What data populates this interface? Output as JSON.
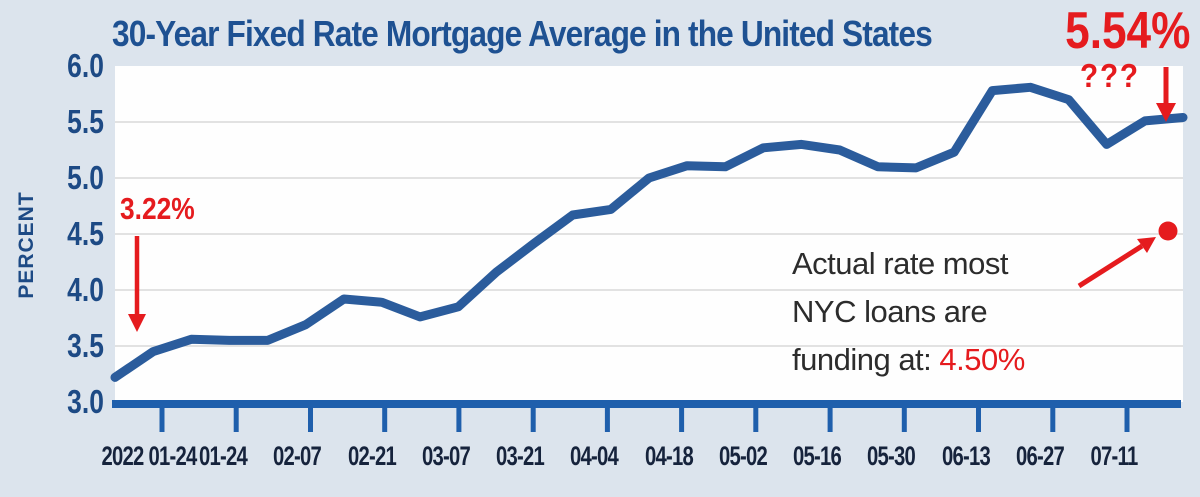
{
  "title": {
    "text": "30-Year Fixed Rate Mortgage Average in the United States"
  },
  "y_axis": {
    "label": "PERCENT",
    "tick_labels": [
      "6.0",
      "5.5",
      "5.0",
      "4.5",
      "4.0",
      "3.5",
      "3.0"
    ]
  },
  "x_axis": {
    "tick_labels": [
      "2022 01-24",
      "01-24",
      "02-07",
      "02-21",
      "03-07",
      "03-21",
      "04-04",
      "04-18",
      "05-02",
      "05-16",
      "05-30",
      "06-13",
      "06-27",
      "07-11"
    ]
  },
  "callouts": {
    "start_rate": "3.22%",
    "end_rate": "5.54%",
    "question_marks": "???",
    "note_line1": "Actual rate most",
    "note_line2": "NYC loans are",
    "note_line3_prefix": "funding at: ",
    "note_rate": "4.50%"
  },
  "colors": {
    "page_bg": "#dce4ed",
    "plot_bg": "#fefefe",
    "grid": "#d9d9d9",
    "line": "#2b5c9c",
    "axis": "#1f5fac",
    "navy_title": "#1e5192",
    "navy_axis": "#1d4a85",
    "x_label": "#16233c",
    "red": "#e51b1e",
    "note_text": "#2c2c2c"
  },
  "chart_data": {
    "type": "line",
    "title": "30-Year Fixed Rate Mortgage Average in the United States",
    "ylabel": "PERCENT",
    "ylim": [
      3.0,
      6.0
    ],
    "y_ticks": [
      6.0,
      5.5,
      5.0,
      4.5,
      4.0,
      3.5,
      3.0
    ],
    "x_tick_labels": [
      "2022 01-24",
      "01-24",
      "02-07",
      "02-21",
      "03-07",
      "03-21",
      "04-04",
      "04-18",
      "05-02",
      "05-16",
      "05-30",
      "06-13",
      "06-27",
      "07-11"
    ],
    "grid": "horizontal",
    "legend": "none",
    "series": [
      {
        "name": "30-year fixed rate mortgage average, weekly (percent)",
        "values": [
          3.22,
          3.45,
          3.56,
          3.55,
          3.55,
          3.69,
          3.92,
          3.89,
          3.76,
          3.85,
          4.16,
          4.42,
          4.67,
          4.72,
          5.0,
          5.11,
          5.1,
          5.27,
          5.3,
          5.25,
          5.1,
          5.09,
          5.23,
          5.78,
          5.81,
          5.7,
          5.3,
          5.51,
          5.54
        ]
      }
    ],
    "annotations": [
      {
        "text": "3.22%",
        "color": "red",
        "points_to": "first value of line"
      },
      {
        "text": "5.54%",
        "color": "red",
        "points_to": "last value of line"
      },
      {
        "text": "???",
        "color": "red",
        "near": "dip before line end"
      },
      {
        "text": "Actual rate most NYC loans are funding at: 4.50%",
        "marker": "red dot",
        "marker_value": 4.5
      }
    ]
  }
}
